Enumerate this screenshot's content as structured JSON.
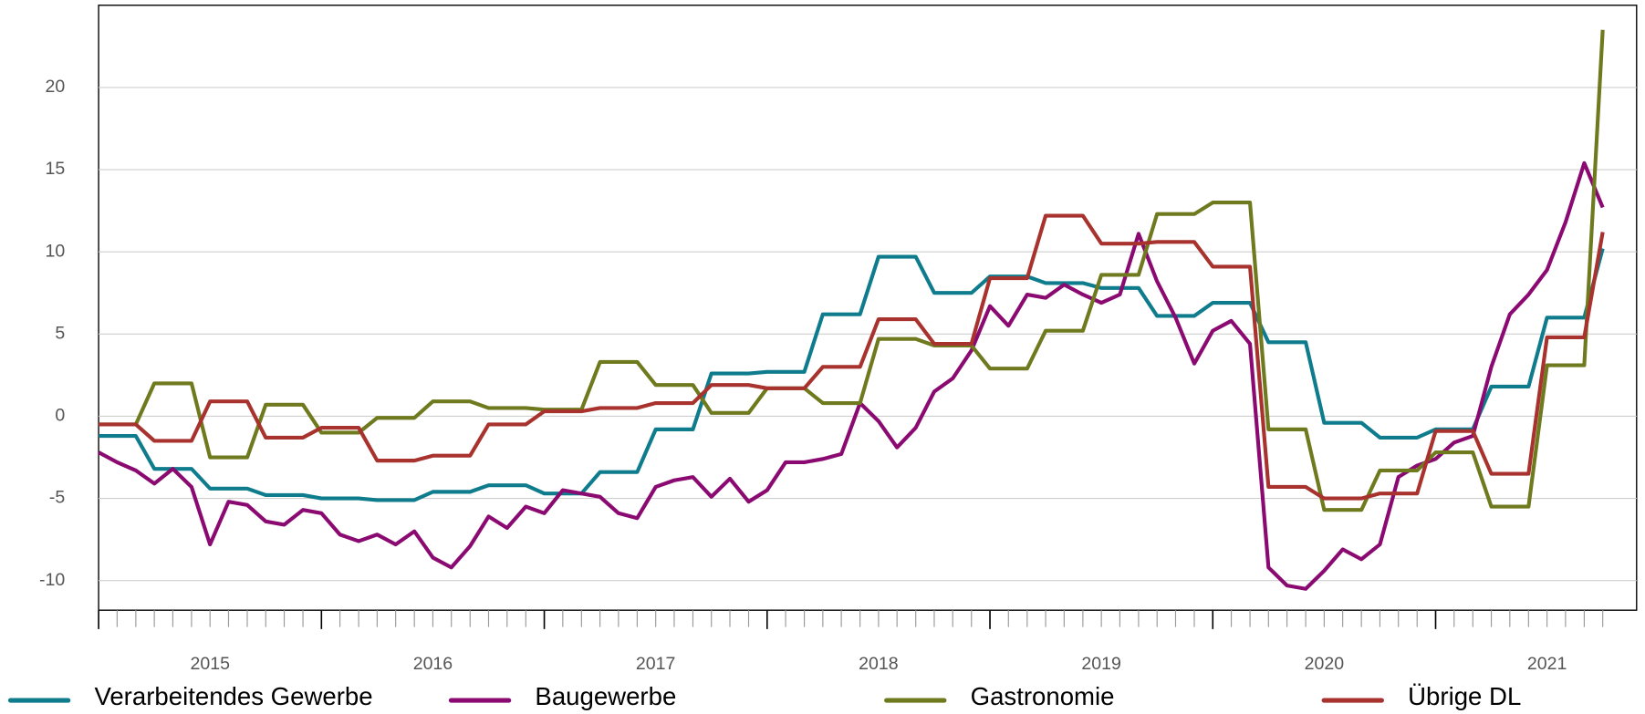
{
  "chart_data": {
    "type": "line",
    "x": [
      2015,
      2015.083,
      2015.167,
      2015.25,
      2015.333,
      2015.417,
      2015.5,
      2015.583,
      2015.667,
      2015.75,
      2015.833,
      2015.917,
      2016,
      2016.083,
      2016.167,
      2016.25,
      2016.333,
      2016.417,
      2016.5,
      2016.583,
      2016.667,
      2016.75,
      2016.833,
      2016.917,
      2017,
      2017.083,
      2017.167,
      2017.25,
      2017.333,
      2017.417,
      2017.5,
      2017.583,
      2017.667,
      2017.75,
      2017.833,
      2017.917,
      2018,
      2018.083,
      2018.167,
      2018.25,
      2018.333,
      2018.417,
      2018.5,
      2018.583,
      2018.667,
      2018.75,
      2018.833,
      2018.917,
      2019,
      2019.083,
      2019.167,
      2019.25,
      2019.333,
      2019.417,
      2019.5,
      2019.583,
      2019.667,
      2019.75,
      2019.833,
      2019.917,
      2020,
      2020.083,
      2020.167,
      2020.25,
      2020.333,
      2020.417,
      2020.5,
      2020.583,
      2020.667,
      2020.75,
      2020.833,
      2020.917,
      2021,
      2021.083,
      2021.167,
      2021.25,
      2021.333,
      2021.417,
      2021.5,
      2021.583,
      2021.667,
      2021.75
    ],
    "series": [
      {
        "name": "Verarbeitendes Gewerbe",
        "color": "#0e7c8c",
        "values": [
          -1.2,
          -1.2,
          -1.2,
          -3.2,
          -3.2,
          -3.2,
          -4.4,
          -4.4,
          -4.4,
          -4.8,
          -4.8,
          -4.8,
          -5.0,
          -5.0,
          -5.0,
          -5.1,
          -5.1,
          -5.1,
          -4.6,
          -4.6,
          -4.6,
          -4.2,
          -4.2,
          -4.2,
          -4.7,
          -4.7,
          -4.7,
          -3.4,
          -3.4,
          -3.4,
          -0.8,
          -0.8,
          -0.8,
          2.6,
          2.6,
          2.6,
          2.7,
          2.7,
          2.7,
          6.2,
          6.2,
          6.2,
          9.7,
          9.7,
          9.7,
          7.5,
          7.5,
          7.5,
          8.5,
          8.5,
          8.5,
          8.1,
          8.1,
          8.1,
          7.8,
          7.8,
          7.8,
          6.1,
          6.1,
          6.1,
          6.9,
          6.9,
          6.9,
          4.5,
          4.5,
          4.5,
          -0.4,
          -0.4,
          -0.4,
          -1.3,
          -1.3,
          -1.3,
          -0.8,
          -0.8,
          -0.8,
          1.8,
          1.8,
          1.8,
          6.0,
          6.0,
          6.0,
          10.2
        ]
      },
      {
        "name": "Baugewerbe",
        "color": "#8b0a72",
        "values": [
          -2.2,
          -2.8,
          -3.3,
          -4.1,
          -3.2,
          -4.3,
          -7.8,
          -5.2,
          -5.4,
          -6.4,
          -6.6,
          -5.7,
          -5.9,
          -7.2,
          -7.6,
          -7.2,
          -7.8,
          -7.0,
          -8.6,
          -9.2,
          -7.9,
          -6.1,
          -6.8,
          -5.5,
          -5.9,
          -4.5,
          -4.7,
          -4.9,
          -5.9,
          -6.2,
          -4.3,
          -3.9,
          -3.7,
          -4.9,
          -3.8,
          -5.2,
          -4.5,
          -2.8,
          -2.8,
          -2.6,
          -2.3,
          0.8,
          -0.3,
          -1.9,
          -0.7,
          1.5,
          2.3,
          4.0,
          6.7,
          5.5,
          7.4,
          7.2,
          8.0,
          7.4,
          6.9,
          7.4,
          11.1,
          8.2,
          6.0,
          3.2,
          5.2,
          5.8,
          4.4,
          -9.2,
          -10.3,
          -10.5,
          -9.4,
          -8.1,
          -8.7,
          -7.8,
          -3.7,
          -3.0,
          -2.6,
          -1.6,
          -1.2,
          3.0,
          6.2,
          7.4,
          8.9,
          11.8,
          15.4,
          12.7
        ]
      },
      {
        "name": "Gastronomie",
        "color": "#6e7a1d",
        "values": [
          -0.5,
          -0.5,
          -0.5,
          2.0,
          2.0,
          2.0,
          -2.5,
          -2.5,
          -2.5,
          0.7,
          0.7,
          0.7,
          -1.0,
          -1.0,
          -1.0,
          -0.1,
          -0.1,
          -0.1,
          0.9,
          0.9,
          0.9,
          0.5,
          0.5,
          0.5,
          0.4,
          0.4,
          0.4,
          3.3,
          3.3,
          3.3,
          1.9,
          1.9,
          1.9,
          0.2,
          0.2,
          0.2,
          1.7,
          1.7,
          1.7,
          0.8,
          0.8,
          0.8,
          4.7,
          4.7,
          4.7,
          4.3,
          4.3,
          4.3,
          2.9,
          2.9,
          2.9,
          5.2,
          5.2,
          5.2,
          8.6,
          8.6,
          8.6,
          12.3,
          12.3,
          12.3,
          13.0,
          13.0,
          13.0,
          -0.8,
          -0.8,
          -0.8,
          -5.7,
          -5.7,
          -5.7,
          -3.3,
          -3.3,
          -3.3,
          -2.2,
          -2.2,
          -2.2,
          -5.5,
          -5.5,
          -5.5,
          3.1,
          3.1,
          3.1,
          23.5
        ]
      },
      {
        "name": "Übrige DL",
        "color": "#a8322d",
        "values": [
          -0.5,
          -0.5,
          -0.5,
          -1.5,
          -1.5,
          -1.5,
          0.9,
          0.9,
          0.9,
          -1.3,
          -1.3,
          -1.3,
          -0.7,
          -0.7,
          -0.7,
          -2.7,
          -2.7,
          -2.7,
          -2.4,
          -2.4,
          -2.4,
          -0.5,
          -0.5,
          -0.5,
          0.3,
          0.3,
          0.3,
          0.5,
          0.5,
          0.5,
          0.8,
          0.8,
          0.8,
          1.9,
          1.9,
          1.9,
          1.7,
          1.7,
          1.7,
          3.0,
          3.0,
          3.0,
          5.9,
          5.9,
          5.9,
          4.4,
          4.4,
          4.4,
          8.4,
          8.4,
          8.4,
          12.2,
          12.2,
          12.2,
          10.5,
          10.5,
          10.5,
          10.6,
          10.6,
          10.6,
          9.1,
          9.1,
          9.1,
          -4.3,
          -4.3,
          -4.3,
          -5.0,
          -5.0,
          -5.0,
          -4.7,
          -4.7,
          -4.7,
          -0.9,
          -0.9,
          -0.9,
          -3.5,
          -3.5,
          -3.5,
          4.8,
          4.8,
          4.8,
          11.2
        ]
      }
    ],
    "xlim": [
      2015,
      2021.902
    ],
    "xticks": [
      2015,
      2016,
      2017,
      2018,
      2019,
      2020,
      2021
    ],
    "ylim": [
      -11.8,
      25
    ],
    "yticks": [
      -10,
      -5,
      0,
      5,
      10,
      15,
      20
    ],
    "grid": true
  }
}
